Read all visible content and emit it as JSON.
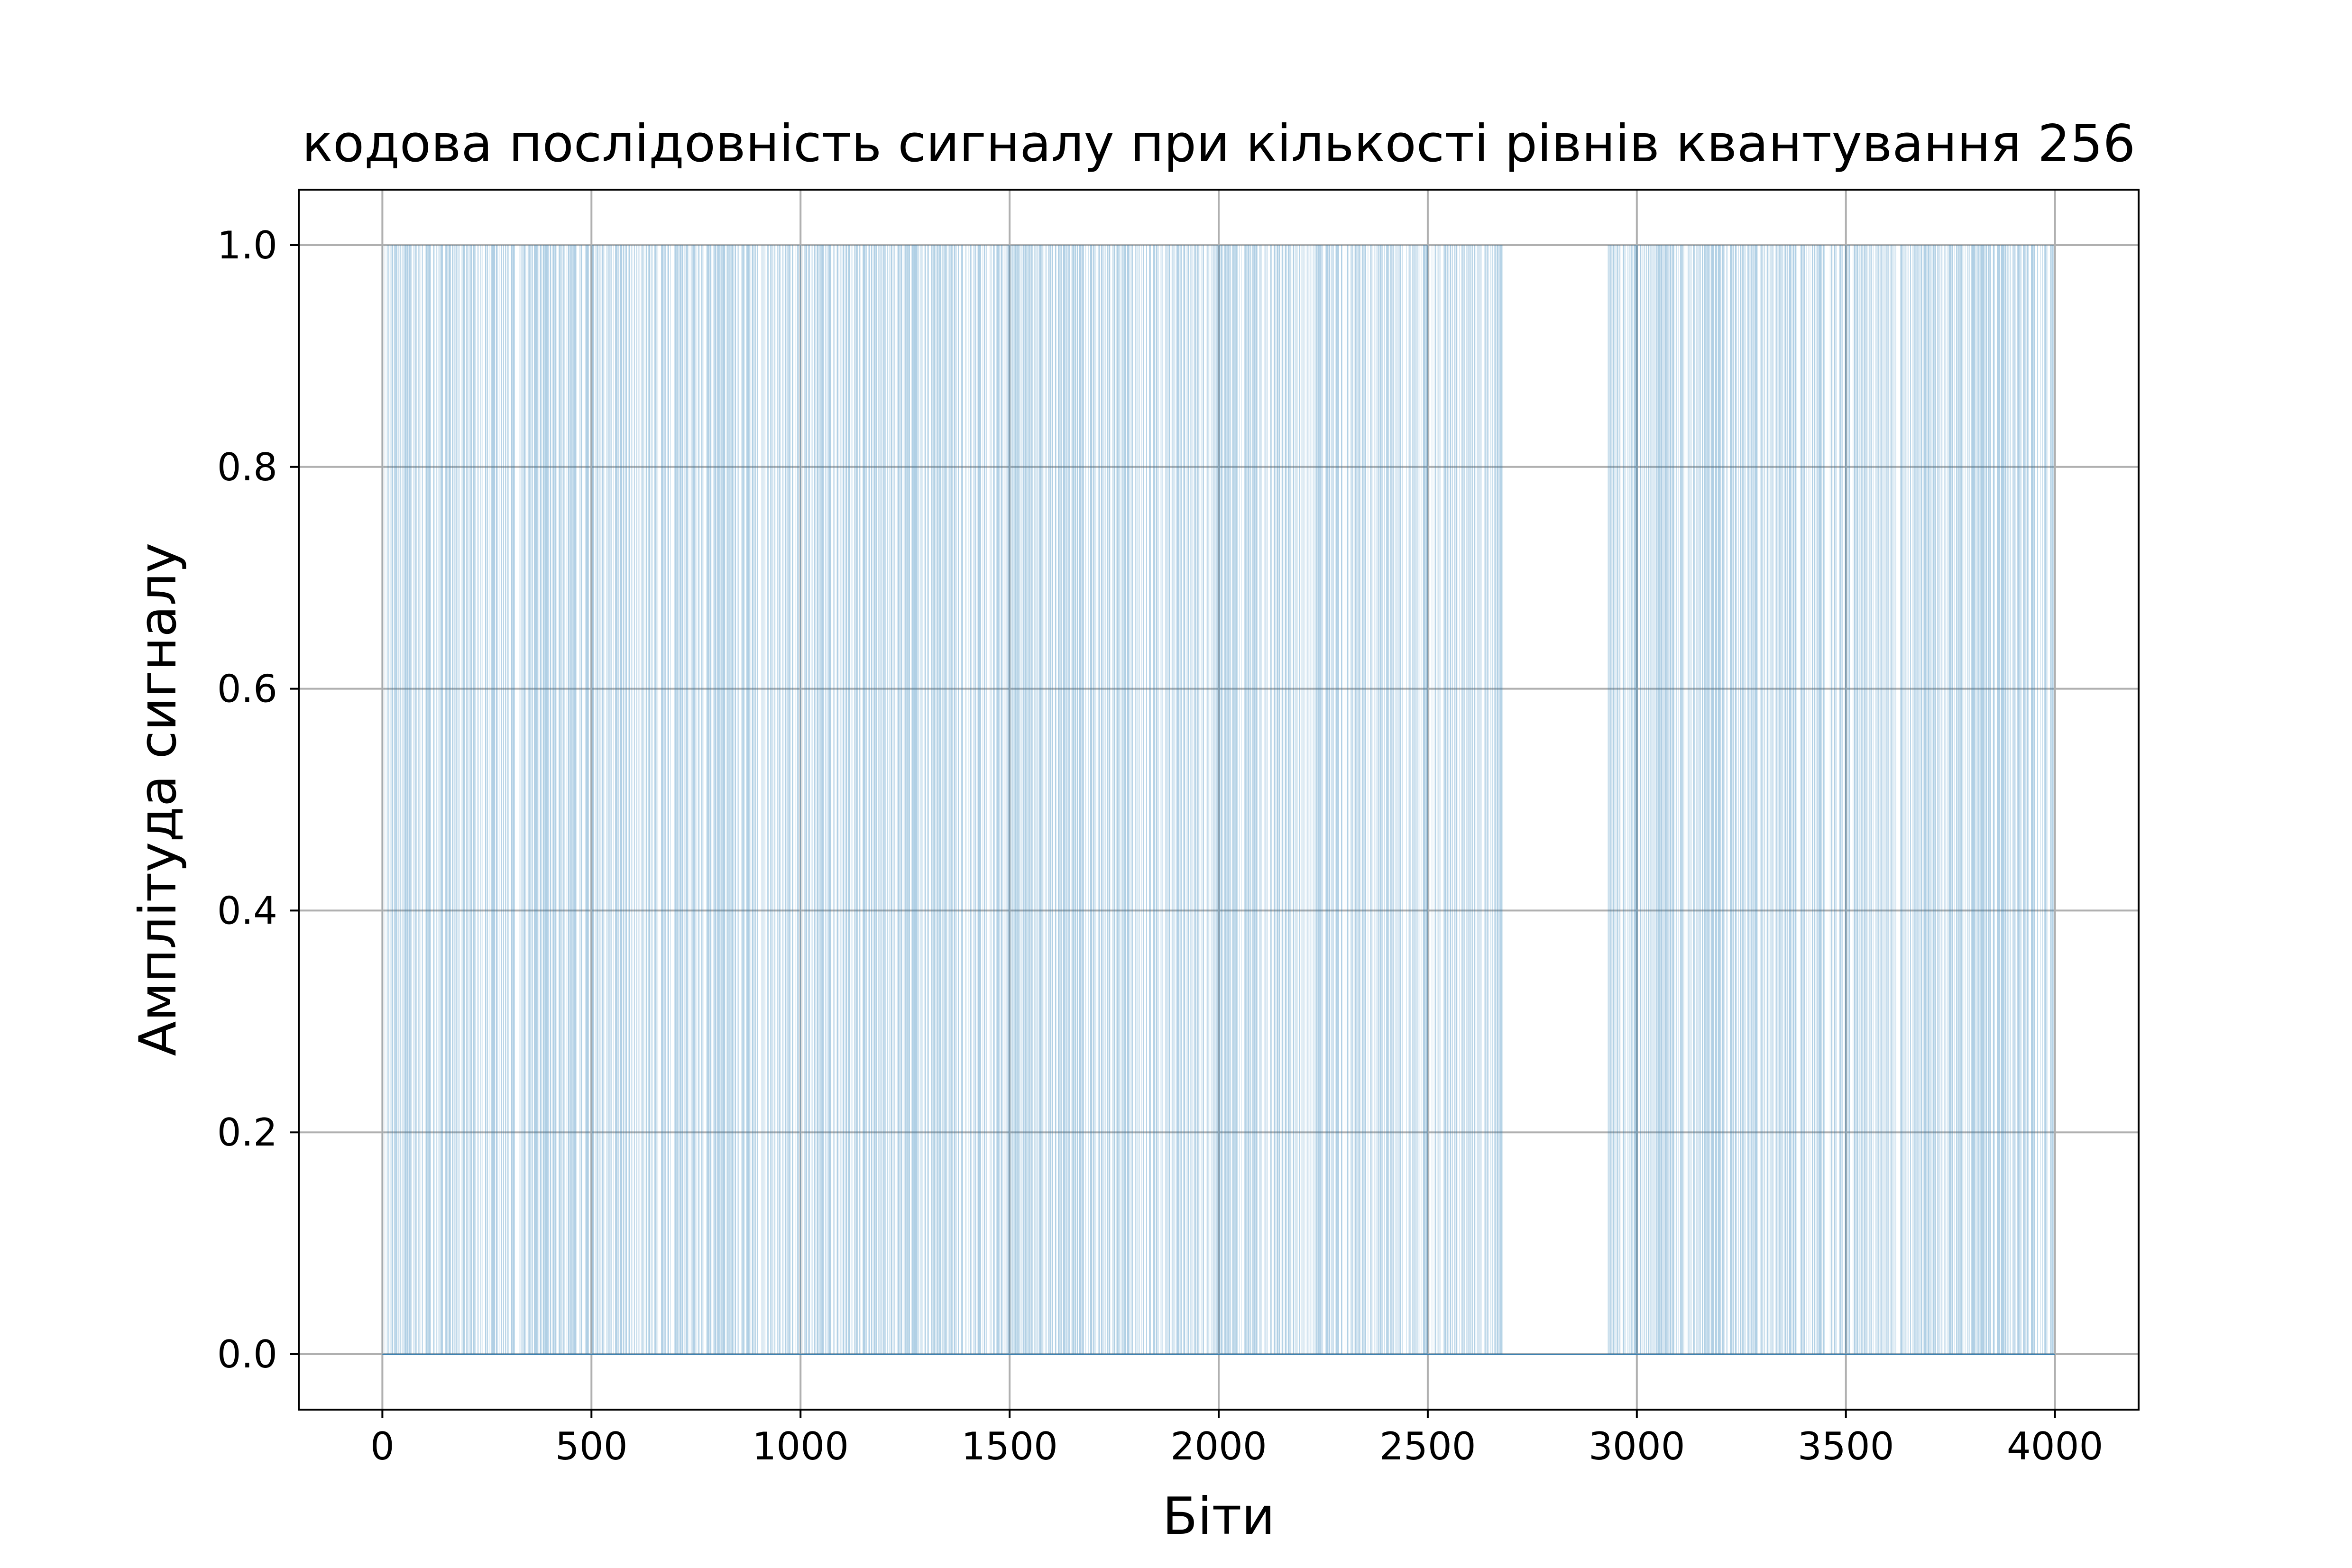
{
  "chart_data": {
    "type": "bar",
    "title": "кодова послідовність сигналу при кількості рівнів квантування 256",
    "xlabel": "Біти",
    "ylabel": "Амплітуда сигналу",
    "xlim": [
      -200,
      4200
    ],
    "ylim": [
      -0.05,
      1.05
    ],
    "xticks": [
      0,
      500,
      1000,
      1500,
      2000,
      2500,
      3000,
      3500,
      4000
    ],
    "xtick_labels": [
      "0",
      "500",
      "1000",
      "1500",
      "2000",
      "2500",
      "3000",
      "3500",
      "4000"
    ],
    "yticks": [
      0.0,
      0.2,
      0.4,
      0.6,
      0.8,
      1.0
    ],
    "ytick_labels": [
      "0.0",
      "0.2",
      "0.4",
      "0.6",
      "0.8",
      "1.0"
    ],
    "grid": true,
    "series": [
      {
        "color": "#1f77b4",
        "bit_count": 4000,
        "segments": [
          {
            "x_start": 0,
            "x_end": 2680,
            "ones_density": 0.5
          },
          {
            "x_start": 2680,
            "x_end": 2930,
            "ones_density": 0.0
          },
          {
            "x_start": 2930,
            "x_end": 4000,
            "ones_density": 0.5
          }
        ],
        "values": "bits (0 or 1) of the 8-bit codewords; individual values not legible at this resolution"
      }
    ]
  }
}
